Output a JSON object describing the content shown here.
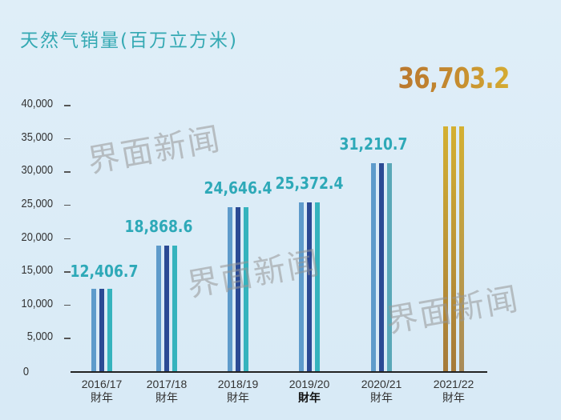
{
  "title": "天然气销量(百万立方米)",
  "watermark": "界面新闻",
  "y_axis": {
    "ticks": [
      "40,000",
      "35,000",
      "30,000",
      "25,000",
      "20,000",
      "15,000",
      "10,000",
      "5,000",
      "0"
    ]
  },
  "colors": {
    "bar_light_blue": "#5e9bcb",
    "bar_dark_blue": "#2b4a94",
    "bar_teal": "#35b3bd",
    "bar_gold_top": "#d4b032",
    "bar_gold_bottom": "#a57a3a",
    "value_label": "#2ea9b8",
    "highlight_label": "#c08a2a",
    "title": "#34a9b3"
  },
  "categories": [
    {
      "label": "2016/17",
      "sub": "財年",
      "value_label": "12,406.7"
    },
    {
      "label": "2017/18",
      "sub": "財年",
      "value_label": "18,868.6"
    },
    {
      "label": "2018/19",
      "sub": "財年",
      "value_label": "24,646.4"
    },
    {
      "label": "2019/20",
      "sub": "財年",
      "value_label": "25,372.4"
    },
    {
      "label": "2020/21",
      "sub": "財年",
      "value_label": "31,210.7"
    },
    {
      "label": "2021/22",
      "sub": "財年",
      "value_label": "36,703.2"
    }
  ],
  "chart_data": {
    "type": "bar",
    "title": "天然气销量(百万立方米)",
    "xlabel": "",
    "ylabel": "百万立方米",
    "categories": [
      "2016/17財年",
      "2017/18財年",
      "2018/19財年",
      "2019/20財年",
      "2020/21財年",
      "2021/22財年"
    ],
    "values": [
      12406.7,
      18868.6,
      24646.4,
      25372.4,
      31210.7,
      36703.2
    ],
    "ylim": [
      0,
      40000
    ],
    "yticks": [
      0,
      5000,
      10000,
      15000,
      20000,
      25000,
      30000,
      35000,
      40000
    ],
    "grid": false,
    "legend": null,
    "annotations": [
      "12,406.7",
      "18,868.6",
      "24,646.4",
      "25,372.4",
      "31,210.7",
      "36,703.2"
    ],
    "highlight": {
      "category": "2021/22財年",
      "color": "gold"
    }
  }
}
